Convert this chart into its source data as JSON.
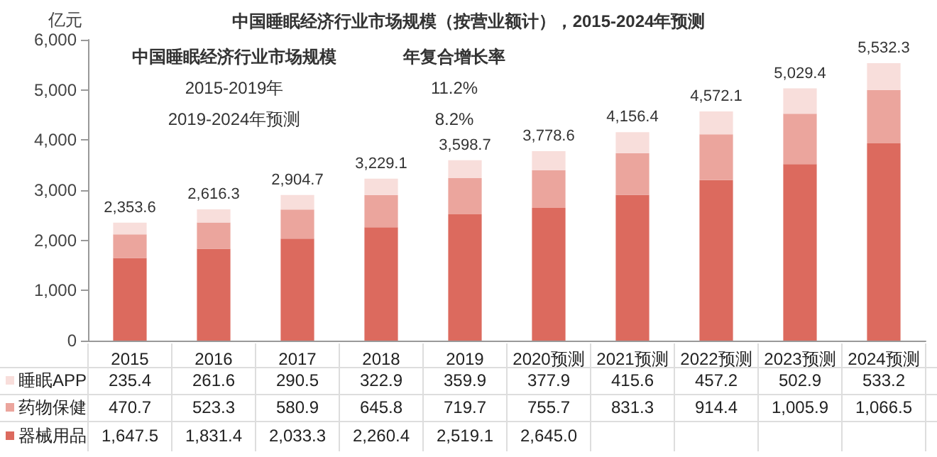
{
  "chart_data": {
    "type": "bar",
    "stacked": true,
    "title": "中国睡眠经济行业市场规模（按营业额计），2015-2024年预测",
    "ylabel": "亿元",
    "categories": [
      "2015",
      "2016",
      "2017",
      "2018",
      "2019",
      "2020预测",
      "2021预测",
      "2022预测",
      "2023预测",
      "2024预测"
    ],
    "series": [
      {
        "name": "器械用品",
        "color": "#dc6a5e",
        "values": [
          1647.5,
          1831.4,
          2033.3,
          2260.4,
          2519.1,
          2645.0,
          2909.5,
          3200.5,
          3520.6,
          3932.6
        ],
        "value_labels": [
          "1,647.5",
          "1,831.4",
          "2,033.3",
          "2,260.4",
          "2,519.1",
          "2,645.0",
          null,
          null,
          null,
          null
        ]
      },
      {
        "name": "药物保健",
        "color": "#eba59d",
        "values": [
          470.7,
          523.3,
          580.9,
          645.8,
          719.7,
          755.7,
          831.3,
          914.4,
          1005.9,
          1066.5
        ],
        "value_labels": [
          "470.7",
          "523.3",
          "580.9",
          "645.8",
          "719.7",
          "755.7",
          "831.3",
          "914.4",
          "1,005.9",
          "1,066.5"
        ]
      },
      {
        "name": "睡眠APP",
        "color": "#f8dedb",
        "values": [
          235.4,
          261.6,
          290.5,
          322.9,
          359.9,
          377.9,
          415.6,
          457.2,
          502.9,
          533.2
        ],
        "value_labels": [
          "235.4",
          "261.6",
          "290.5",
          "322.9",
          "359.9",
          "377.9",
          "415.6",
          "457.2",
          "502.9",
          "533.2"
        ]
      }
    ],
    "totals": [
      "2,353.6",
      "2,616.3",
      "2,904.7",
      "3,229.1",
      "3,598.7",
      "3,778.6",
      "4,156.4",
      "4,572.1",
      "5,029.4",
      "5,532.3"
    ],
    "ylim": [
      0,
      6000
    ],
    "yticks": [
      0,
      {
        "value": 1000,
        "label": "1,000"
      },
      {
        "value": 2000,
        "label": "2,000"
      },
      {
        "value": 3000,
        "label": "3,000"
      },
      {
        "value": 4000,
        "label": "4,000"
      },
      {
        "value": 5000,
        "label": "5,000"
      },
      {
        "value": 6000,
        "label": "6,000"
      }
    ],
    "grid": false,
    "legend": "bottom",
    "annotations": [
      "中国睡眠经济行业市场规模",
      "年复合增长率",
      "2015-2019年",
      "11.2%",
      "2019-2024年预测",
      "8.2%"
    ]
  }
}
